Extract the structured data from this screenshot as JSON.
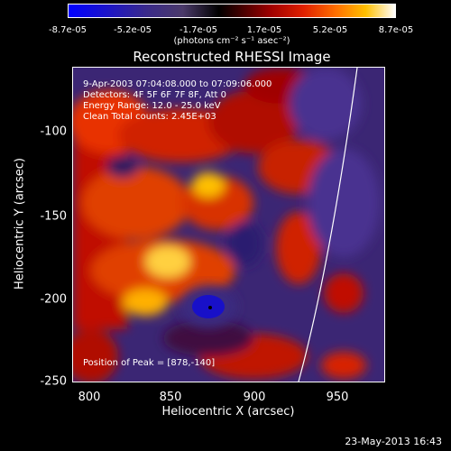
{
  "colorbar": {
    "ticks": [
      "-8.7e-05",
      "-5.2e-05",
      "-1.7e-05",
      "1.7e-05",
      "5.2e-05",
      "8.7e-05"
    ],
    "units": "(photons cm⁻² s⁻¹ asec⁻²)"
  },
  "title": "Reconstructed RHESSI Image",
  "info": {
    "time": "9-Apr-2003 07:04:08.000 to 07:09:06.000",
    "detectors": "Detectors: 4F 5F 6F 7F 8F, Att 0",
    "energy": "Energy Range: 12.0 - 25.0 keV",
    "clean": "Clean    Total counts: 2.45E+03",
    "peak": "Position of Peak = [878,-140]"
  },
  "axes": {
    "xlabel": "Heliocentric X (arcsec)",
    "ylabel": "Heliocentric Y (arcsec)",
    "xticks": [
      "800",
      "850",
      "900",
      "950"
    ],
    "yticks": [
      "-100",
      "-150",
      "-200",
      "-250"
    ]
  },
  "footer": "23-May-2013 16:43",
  "colors": {
    "background": "#000000",
    "frame": "#ffffff"
  }
}
